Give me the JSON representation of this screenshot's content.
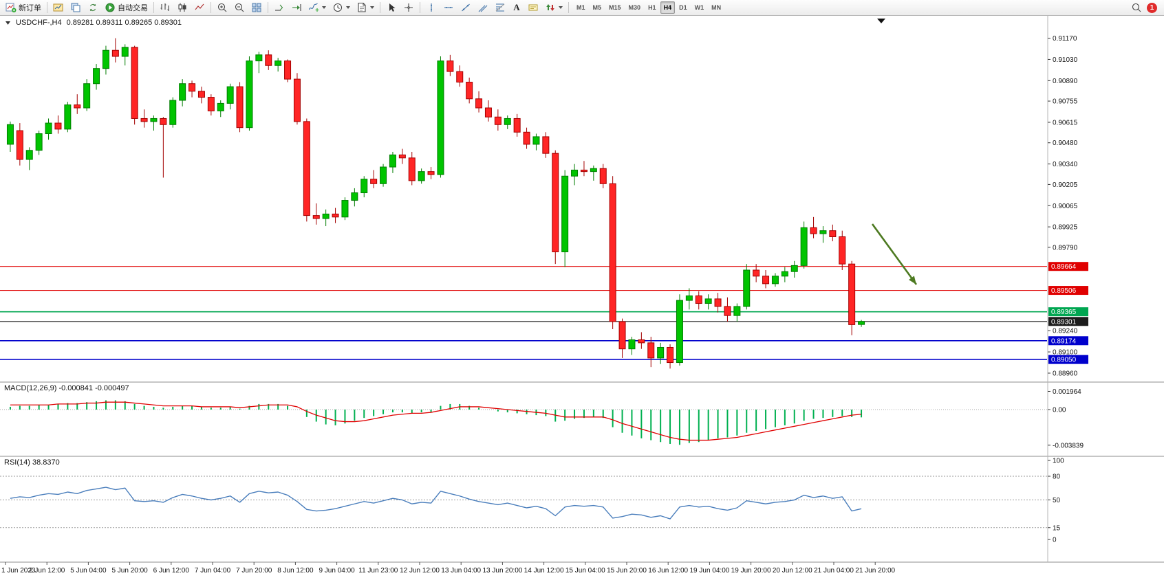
{
  "toolbar": {
    "new_order_label": "新订单",
    "auto_trading_label": "自动交易",
    "text_tool_glyph": "A",
    "timeframes": [
      "M1",
      "M5",
      "M15",
      "M30",
      "H1",
      "H4",
      "D1",
      "W1",
      "MN"
    ],
    "active_timeframe": "H4",
    "notification_count": "1"
  },
  "main_chart": {
    "symbol_period": "USDCHF-,H4",
    "ohlc_text": "0.89281 0.89311 0.89265 0.89301"
  },
  "chart_data": [
    {
      "type": "candlestick",
      "title": "USDCHF-,H4",
      "ohlc_header": {
        "open": "0.89281",
        "high": "0.89311",
        "low": "0.89265",
        "close": "0.89301"
      },
      "ylim": [
        0.8891,
        0.91295
      ],
      "y_axis_ticks": [
        "0.91170",
        "0.91030",
        "0.90890",
        "0.90755",
        "0.90615",
        "0.90480",
        "0.90340",
        "0.90205",
        "0.90065",
        "0.89925",
        "0.89790",
        "0.89240",
        "0.89100",
        "0.88960"
      ],
      "x_labels": [
        "1 Jun 2023",
        "2 Jun 12:00",
        "5 Jun 04:00",
        "5 Jun 20:00",
        "6 Jun 12:00",
        "7 Jun 04:00",
        "7 Jun 20:00",
        "8 Jun 12:00",
        "9 Jun 04:00",
        "11 Jun 23:00",
        "12 Jun 12:00",
        "13 Jun 04:00",
        "13 Jun 20:00",
        "14 Jun 12:00",
        "15 Jun 04:00",
        "15 Jun 20:00",
        "16 Jun 12:00",
        "19 Jun 04:00",
        "19 Jun 20:00",
        "20 Jun 12:00",
        "21 Jun 04:00",
        "21 Jun 20:00"
      ],
      "horizontal_lines": [
        {
          "price": 0.89664,
          "label": "0.89664",
          "color": "#e00000",
          "width": 1.2
        },
        {
          "price": 0.89506,
          "label": "0.89506",
          "color": "#e00000",
          "width": 1.2
        },
        {
          "price": 0.89365,
          "label": "0.89365",
          "color": "#00a651",
          "width": 1.6
        },
        {
          "price": 0.89301,
          "label": "0.89301",
          "color": "#1c1c1c",
          "width": 1.1
        },
        {
          "price": 0.89174,
          "label": "0.89174",
          "color": "#0000cc",
          "width": 1.6
        },
        {
          "price": 0.8905,
          "label": "0.89050",
          "color": "#0000cc",
          "width": 1.6
        }
      ],
      "annotation_arrow": {
        "from": [
          1268,
          326
        ],
        "to": [
          1332,
          414
        ],
        "color": "#4d7a21"
      },
      "end_marker": {
        "x": 1281,
        "y": 27
      },
      "candles": [
        [
          0.9047,
          0.9062,
          0.9042,
          0.906
        ],
        [
          0.9056,
          0.9061,
          0.9033,
          0.9037
        ],
        [
          0.9037,
          0.9045,
          0.903,
          0.9043
        ],
        [
          0.9043,
          0.9056,
          0.904,
          0.9054
        ],
        [
          0.9054,
          0.9064,
          0.905,
          0.9061
        ],
        [
          0.9061,
          0.9066,
          0.9054,
          0.9057
        ],
        [
          0.9057,
          0.9075,
          0.9055,
          0.9073
        ],
        [
          0.9073,
          0.908,
          0.9067,
          0.9071
        ],
        [
          0.9071,
          0.909,
          0.9069,
          0.9087
        ],
        [
          0.9087,
          0.91,
          0.9083,
          0.9097
        ],
        [
          0.9097,
          0.9112,
          0.9093,
          0.9109
        ],
        [
          0.9109,
          0.9117,
          0.9101,
          0.9105
        ],
        [
          0.9105,
          0.9113,
          0.9099,
          0.9111
        ],
        [
          0.9111,
          0.9112,
          0.906,
          0.9064
        ],
        [
          0.9064,
          0.907,
          0.9058,
          0.9062
        ],
        [
          0.9062,
          0.9066,
          0.9056,
          0.9064
        ],
        [
          0.9064,
          0.9065,
          0.9025,
          0.906
        ],
        [
          0.906,
          0.9078,
          0.9058,
          0.9076
        ],
        [
          0.9076,
          0.909,
          0.9072,
          0.9087
        ],
        [
          0.9087,
          0.9089,
          0.9078,
          0.9082
        ],
        [
          0.9082,
          0.9085,
          0.9074,
          0.9078
        ],
        [
          0.9078,
          0.908,
          0.9066,
          0.9069
        ],
        [
          0.9069,
          0.9076,
          0.9065,
          0.9074
        ],
        [
          0.9074,
          0.9087,
          0.907,
          0.9085
        ],
        [
          0.9085,
          0.9088,
          0.9055,
          0.9058
        ],
        [
          0.9058,
          0.9105,
          0.9056,
          0.9102
        ],
        [
          0.9102,
          0.9108,
          0.9094,
          0.9106
        ],
        [
          0.9106,
          0.9109,
          0.9096,
          0.9099
        ],
        [
          0.9099,
          0.9104,
          0.9095,
          0.9102
        ],
        [
          0.9102,
          0.9103,
          0.9088,
          0.909
        ],
        [
          0.909,
          0.9094,
          0.906,
          0.9062
        ],
        [
          0.9062,
          0.9064,
          0.8996,
          0.9
        ],
        [
          0.9,
          0.9008,
          0.8994,
          0.8998
        ],
        [
          0.8998,
          0.9004,
          0.8993,
          0.9001
        ],
        [
          0.9001,
          0.9005,
          0.8995,
          0.8999
        ],
        [
          0.8999,
          0.9012,
          0.8997,
          0.901
        ],
        [
          0.901,
          0.9018,
          0.9006,
          0.9015
        ],
        [
          0.9015,
          0.9026,
          0.9012,
          0.9024
        ],
        [
          0.9024,
          0.903,
          0.9018,
          0.9021
        ],
        [
          0.9021,
          0.9034,
          0.9019,
          0.9032
        ],
        [
          0.9032,
          0.9042,
          0.9028,
          0.904
        ],
        [
          0.904,
          0.9044,
          0.9034,
          0.9038
        ],
        [
          0.9038,
          0.9042,
          0.902,
          0.9023
        ],
        [
          0.9023,
          0.9031,
          0.9021,
          0.9029
        ],
        [
          0.9029,
          0.9032,
          0.9024,
          0.9027
        ],
        [
          0.9027,
          0.9105,
          0.9025,
          0.9102
        ],
        [
          0.9102,
          0.9106,
          0.9092,
          0.9095
        ],
        [
          0.9095,
          0.9099,
          0.9085,
          0.9088
        ],
        [
          0.9088,
          0.9091,
          0.9074,
          0.9077
        ],
        [
          0.9077,
          0.9082,
          0.9068,
          0.9071
        ],
        [
          0.9071,
          0.9076,
          0.9062,
          0.9065
        ],
        [
          0.9065,
          0.907,
          0.9056,
          0.906
        ],
        [
          0.906,
          0.9066,
          0.9057,
          0.9064
        ],
        [
          0.9064,
          0.9067,
          0.9052,
          0.9055
        ],
        [
          0.9055,
          0.9058,
          0.9044,
          0.9047
        ],
        [
          0.9047,
          0.9054,
          0.9043,
          0.9052
        ],
        [
          0.9052,
          0.9055,
          0.9038,
          0.9041
        ],
        [
          0.9041,
          0.9043,
          0.8968,
          0.8976
        ],
        [
          0.8976,
          0.903,
          0.8966,
          0.9026
        ],
        [
          0.9026,
          0.9034,
          0.902,
          0.903
        ],
        [
          0.903,
          0.9036,
          0.9026,
          0.9029
        ],
        [
          0.9029,
          0.9033,
          0.9023,
          0.9031
        ],
        [
          0.9031,
          0.9034,
          0.9018,
          0.9021
        ],
        [
          0.9021,
          0.9026,
          0.8925,
          0.893
        ],
        [
          0.893,
          0.8932,
          0.8906,
          0.8912
        ],
        [
          0.8912,
          0.892,
          0.8908,
          0.8918
        ],
        [
          0.8918,
          0.8923,
          0.8912,
          0.8916
        ],
        [
          0.8916,
          0.892,
          0.89,
          0.8906
        ],
        [
          0.8906,
          0.8916,
          0.8902,
          0.8913
        ],
        [
          0.8913,
          0.8915,
          0.8899,
          0.8903
        ],
        [
          0.8903,
          0.8948,
          0.8901,
          0.8944
        ],
        [
          0.8944,
          0.8952,
          0.8938,
          0.8947
        ],
        [
          0.8947,
          0.895,
          0.8938,
          0.8942
        ],
        [
          0.8942,
          0.8948,
          0.8938,
          0.8945
        ],
        [
          0.8945,
          0.8949,
          0.8936,
          0.894
        ],
        [
          0.894,
          0.8946,
          0.893,
          0.8934
        ],
        [
          0.8934,
          0.8942,
          0.893,
          0.894
        ],
        [
          0.894,
          0.8968,
          0.8938,
          0.8964
        ],
        [
          0.8964,
          0.8968,
          0.8956,
          0.896
        ],
        [
          0.896,
          0.8964,
          0.8952,
          0.8955
        ],
        [
          0.8955,
          0.8962,
          0.8953,
          0.896
        ],
        [
          0.896,
          0.8966,
          0.8956,
          0.8963
        ],
        [
          0.8963,
          0.897,
          0.8959,
          0.8967
        ],
        [
          0.8967,
          0.8996,
          0.8965,
          0.8992
        ],
        [
          0.8992,
          0.8999,
          0.8985,
          0.8988
        ],
        [
          0.8988,
          0.8993,
          0.8982,
          0.899
        ],
        [
          0.899,
          0.8994,
          0.8983,
          0.8986
        ],
        [
          0.8986,
          0.899,
          0.8964,
          0.8968
        ],
        [
          0.8968,
          0.897,
          0.8921,
          0.8928
        ],
        [
          0.89281,
          0.89311,
          0.89265,
          0.89301
        ]
      ],
      "colors": {
        "up": "#00c400",
        "up_edge": "#007d00",
        "down": "#ff2525",
        "down_edge": "#a30000"
      }
    },
    {
      "type": "bar",
      "name": "MACD",
      "label": "MACD(12,26,9) -0.000841 -0.000497",
      "current_main": -0.000841,
      "current_signal": -0.000497,
      "y_ticks": [
        {
          "label": "0.001964",
          "value": 0.001964
        },
        {
          "label": "0.00",
          "value": 0
        },
        {
          "label": "-0.003839",
          "value": -0.003839
        }
      ],
      "values": [
        0.0003,
        0.0004,
        0.0004,
        0.0005,
        0.0005,
        0.0006,
        0.0007,
        0.0007,
        0.0008,
        0.0009,
        0.001,
        0.001,
        0.0009,
        0.0006,
        0.0004,
        0.0003,
        0.0002,
        0.0003,
        0.0004,
        0.0004,
        0.0003,
        0.0002,
        0.0002,
        0.0003,
        0.0001,
        0.0004,
        0.0006,
        0.0006,
        0.0006,
        0.0004,
        0.0,
        -0.0008,
        -0.0013,
        -0.0016,
        -0.0017,
        -0.0015,
        -0.0012,
        -0.0009,
        -0.0007,
        -0.0005,
        -0.0003,
        -0.0003,
        -0.0004,
        -0.0003,
        -0.0003,
        0.0004,
        0.0006,
        0.0006,
        0.0004,
        0.0002,
        0.0,
        -0.0002,
        -0.0003,
        -0.0004,
        -0.0005,
        -0.0006,
        -0.0007,
        -0.0013,
        -0.0012,
        -0.001,
        -0.0009,
        -0.0008,
        -0.0009,
        -0.0019,
        -0.0025,
        -0.0028,
        -0.0031,
        -0.0033,
        -0.0035,
        -0.0037,
        -0.0038,
        -0.0036,
        -0.0035,
        -0.0033,
        -0.0031,
        -0.003,
        -0.0028,
        -0.0025,
        -0.0023,
        -0.0021,
        -0.0019,
        -0.0017,
        -0.0015,
        -0.0012,
        -0.001,
        -0.0009,
        -0.0008,
        -0.0007,
        -0.0008,
        -0.000841
      ],
      "signal": [
        0.0005,
        0.0005,
        0.0005,
        0.0005,
        0.0005,
        0.0006,
        0.0006,
        0.0006,
        0.0007,
        0.0007,
        0.0008,
        0.0008,
        0.0008,
        0.0007,
        0.0006,
        0.0005,
        0.0004,
        0.0004,
        0.0004,
        0.0004,
        0.0003,
        0.0003,
        0.0003,
        0.0003,
        0.0002,
        0.0003,
        0.0004,
        0.0005,
        0.0005,
        0.0005,
        0.0003,
        -0.0002,
        -0.0006,
        -0.0009,
        -0.0012,
        -0.0013,
        -0.0013,
        -0.0012,
        -0.001,
        -0.0008,
        -0.0006,
        -0.0005,
        -0.0004,
        -0.0004,
        -0.0003,
        -0.0001,
        0.0001,
        0.0003,
        0.0003,
        0.0003,
        0.0002,
        0.0001,
        0.0,
        -0.0001,
        -0.0002,
        -0.0003,
        -0.0004,
        -0.0006,
        -0.0008,
        -0.0008,
        -0.0008,
        -0.0008,
        -0.0008,
        -0.0011,
        -0.0015,
        -0.0018,
        -0.0021,
        -0.0024,
        -0.0027,
        -0.003,
        -0.0032,
        -0.0033,
        -0.0033,
        -0.0033,
        -0.0032,
        -0.0031,
        -0.003,
        -0.0028,
        -0.0026,
        -0.0024,
        -0.0022,
        -0.002,
        -0.0018,
        -0.0016,
        -0.0014,
        -0.0012,
        -0.001,
        -0.0008,
        -0.0006,
        -0.000497
      ],
      "colors": {
        "histogram": "#00b050",
        "signal": "#e00000"
      }
    },
    {
      "type": "line",
      "name": "RSI",
      "label": "RSI(14) 38.8370",
      "current_value": 38.837,
      "ylim": [
        0,
        100
      ],
      "levels": [
        80,
        50,
        15
      ],
      "y_ticks": [
        {
          "label": "100",
          "value": 100
        },
        {
          "label": "80",
          "value": 80
        },
        {
          "label": "50",
          "value": 50
        },
        {
          "label": "15",
          "value": 15
        },
        {
          "label": "0",
          "value": 0
        }
      ],
      "values": [
        52,
        54,
        53,
        56,
        58,
        57,
        60,
        58,
        62,
        64,
        66,
        63,
        65,
        49,
        48,
        49,
        47,
        53,
        57,
        55,
        52,
        50,
        52,
        55,
        47,
        58,
        61,
        59,
        60,
        56,
        48,
        38,
        36,
        37,
        39,
        42,
        45,
        48,
        46,
        49,
        52,
        50,
        45,
        47,
        46,
        61,
        58,
        55,
        51,
        48,
        46,
        44,
        46,
        43,
        40,
        42,
        39,
        30,
        41,
        43,
        42,
        43,
        41,
        27,
        29,
        32,
        31,
        28,
        30,
        26,
        41,
        43,
        41,
        42,
        39,
        37,
        40,
        49,
        47,
        45,
        47,
        48,
        50,
        56,
        53,
        55,
        52,
        54,
        36,
        38.837
      ],
      "colors": {
        "line": "#4a7ebc"
      }
    }
  ]
}
